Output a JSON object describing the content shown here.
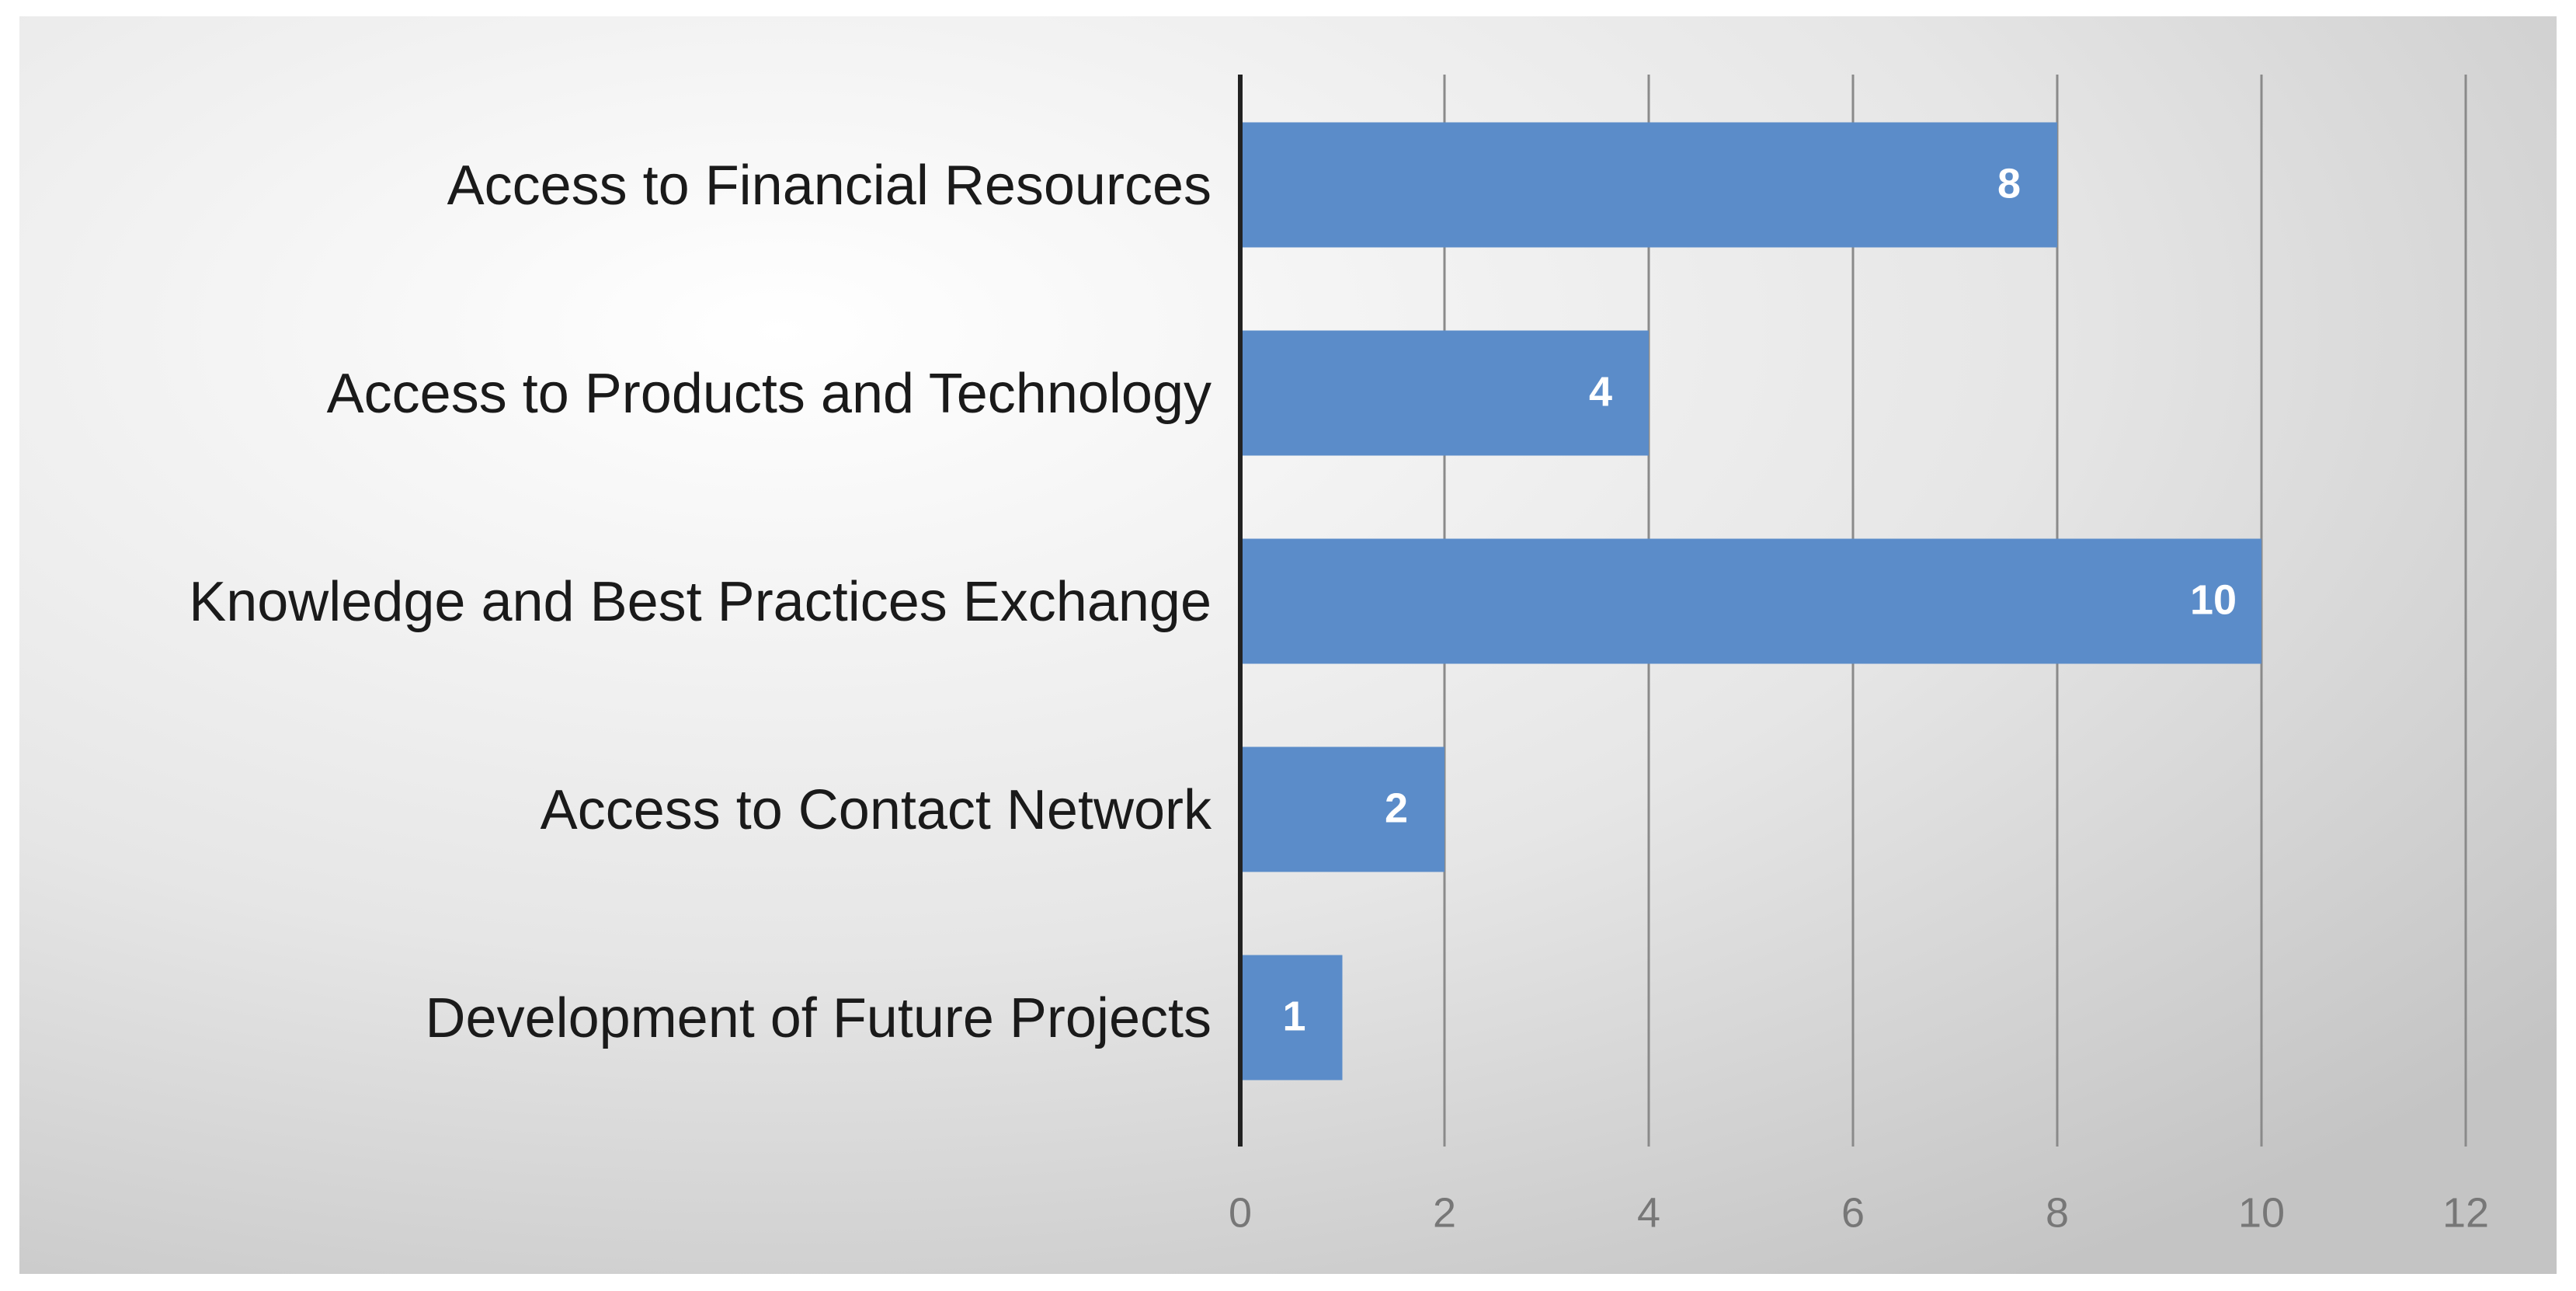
{
  "chart_data": {
    "type": "bar",
    "orientation": "horizontal",
    "categories": [
      "Access to Financial Resources",
      "Access to Products and Technology",
      "Knowledge and Best Practices Exchange",
      "Access to Contact Network",
      "Development of Future Projects"
    ],
    "values": [
      8,
      4,
      10,
      2,
      1
    ],
    "color": "#5b8cc9",
    "xlim": [
      0,
      12
    ],
    "xticks": [
      0,
      2,
      4,
      6,
      8,
      10,
      12
    ],
    "grid": true
  }
}
